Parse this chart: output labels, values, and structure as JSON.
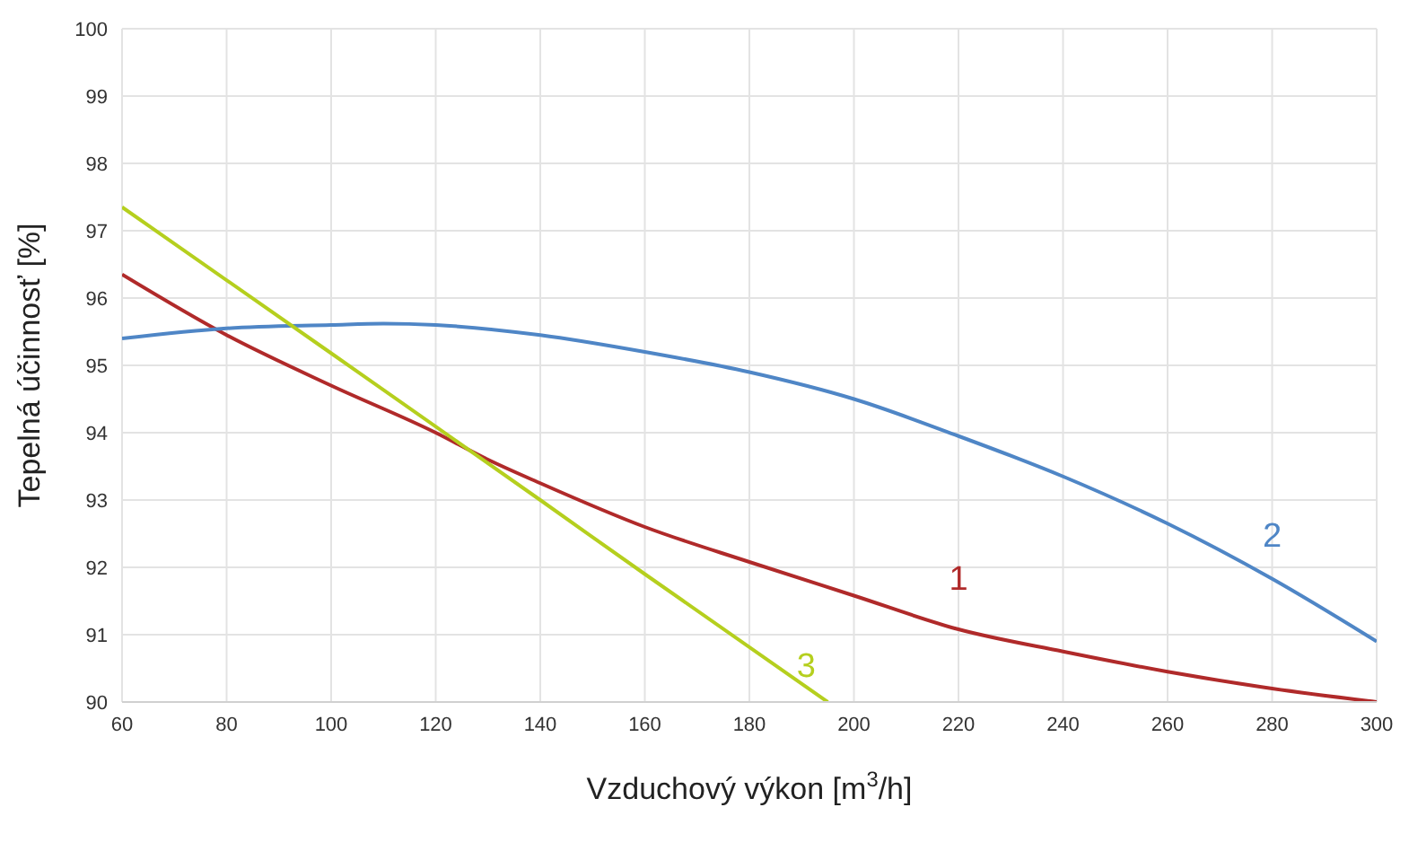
{
  "chart_data": {
    "type": "line",
    "xlabel": "Vzduchový výkon [m$^{3}$/h]",
    "ylabel": "Tepelná účinnosť [%]",
    "xlim": [
      60,
      300
    ],
    "xticks": [
      60,
      80,
      100,
      120,
      140,
      160,
      180,
      200,
      220,
      240,
      260,
      280,
      300
    ],
    "ylim": [
      90,
      100
    ],
    "yticks": [
      90,
      91,
      92,
      93,
      94,
      95,
      96,
      97,
      98,
      99,
      100
    ],
    "grid": true,
    "marker": "none",
    "line_style": "solid",
    "series": [
      {
        "name": "1",
        "color": "#b02a2a",
        "x": [
          60,
          80,
          100,
          120,
          130,
          140,
          160,
          180,
          200,
          220,
          240,
          260,
          280,
          300
        ],
        "values": [
          96.35,
          95.45,
          94.7,
          94.0,
          93.6,
          93.25,
          92.6,
          92.08,
          91.58,
          91.08,
          90.75,
          90.45,
          90.2,
          90.0
        ]
      },
      {
        "name": "2",
        "color": "#4f86c6",
        "x": [
          60,
          80,
          100,
          110,
          120,
          140,
          160,
          180,
          200,
          220,
          240,
          260,
          280,
          300
        ],
        "values": [
          95.4,
          95.55,
          95.6,
          95.62,
          95.6,
          95.45,
          95.2,
          94.9,
          94.5,
          93.95,
          93.35,
          92.65,
          91.83,
          90.9
        ]
      },
      {
        "name": "3",
        "color": "#b5cf1e",
        "x": [
          60,
          100,
          140,
          160,
          195
        ],
        "values": [
          97.35,
          95.18,
          93.0,
          91.9,
          90.0
        ]
      }
    ]
  }
}
